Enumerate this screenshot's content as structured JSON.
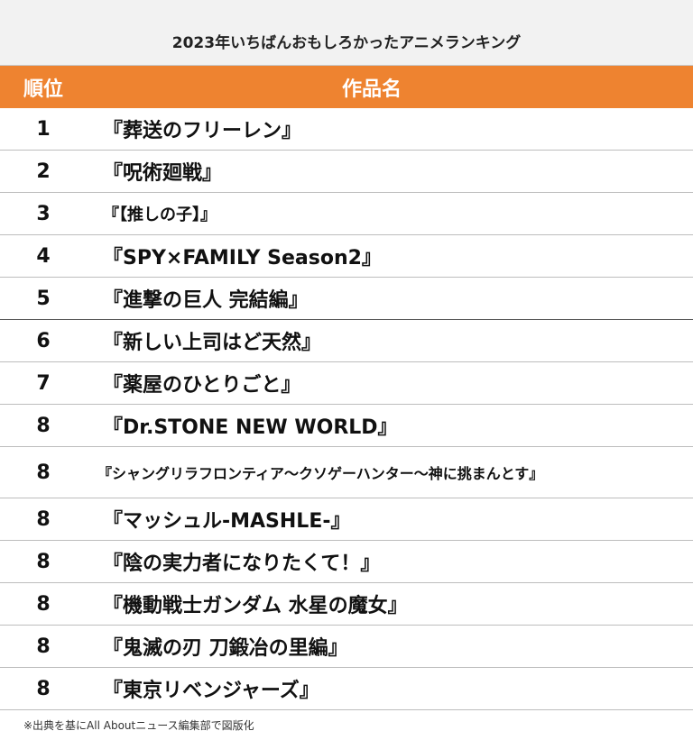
{
  "title": "2023年いちばんおもしろかったアニメランキング",
  "header": {
    "rank": "順位",
    "title": "作品名"
  },
  "rows": [
    {
      "rank": "1",
      "title": "『葬送のフリーレン』"
    },
    {
      "rank": "2",
      "title": "『呪術廻戦』"
    },
    {
      "rank": "3",
      "title": "『【推しの子】』"
    },
    {
      "rank": "4",
      "title": "『SPY×FAMILY  Season2』"
    },
    {
      "rank": "5",
      "title": "『進撃の巨人 完結編』"
    },
    {
      "rank": "6",
      "title": "『新しい上司はど天然』"
    },
    {
      "rank": "7",
      "title": "『薬屋のひとりごと』"
    },
    {
      "rank": "8",
      "title": "『Dr.STONE NEW WORLD』"
    },
    {
      "rank": "8",
      "title": "『シャングリラフロンティア〜クソゲーハンター〜神に挑まんとす』"
    },
    {
      "rank": "8",
      "title": "『マッシュル-MASHLE-』"
    },
    {
      "rank": "8",
      "title": "『陰の実力者になりたくて！』"
    },
    {
      "rank": "8",
      "title": "『機動戦士ガンダム 水星の魔女』"
    },
    {
      "rank": "8",
      "title": "『鬼滅の刃 刀鍛冶の里編』"
    },
    {
      "rank": "8",
      "title": "『東京リベンジャーズ』"
    }
  ],
  "footnote": "※出典を基にAll Aboutニュース編集部で図版化",
  "colors": {
    "header_bg": "#ee8330",
    "title_bg": "#f2f2f2"
  }
}
